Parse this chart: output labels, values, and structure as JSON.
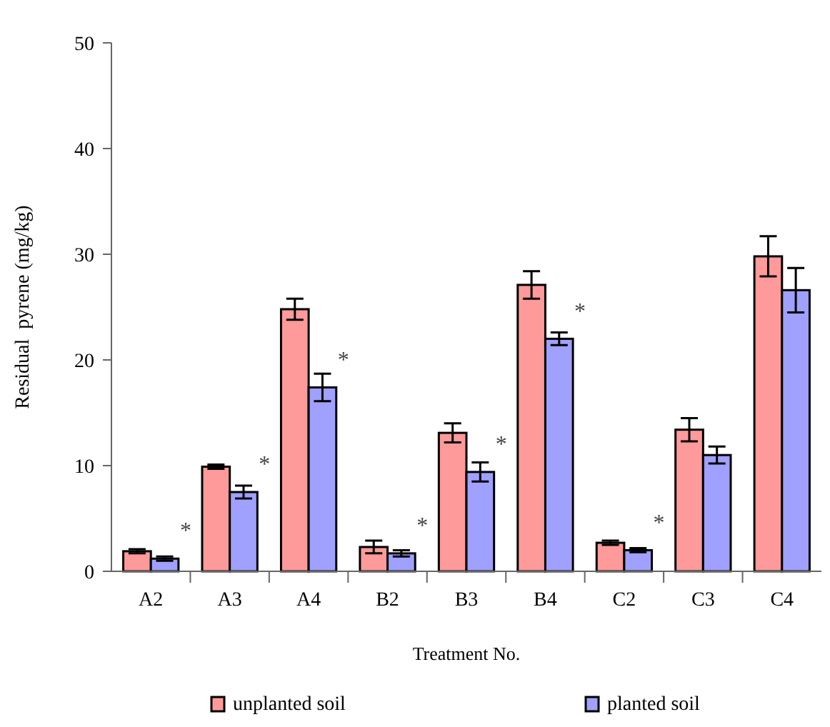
{
  "chart_data": {
    "type": "bar",
    "xlabel": "Treatment No.",
    "ylabel": "Residual  pyrene (mg/kg)",
    "categories": [
      "A2",
      "A3",
      "A4",
      "B2",
      "B3",
      "B4",
      "C2",
      "C3",
      "C4"
    ],
    "series": [
      {
        "name": "unplanted soil",
        "color": "#ff9a9a",
        "values": [
          1.9,
          9.9,
          24.8,
          2.3,
          13.1,
          27.1,
          2.7,
          13.4,
          29.8
        ],
        "errors": [
          0.2,
          0.2,
          1.0,
          0.6,
          0.9,
          1.3,
          0.2,
          1.1,
          1.9
        ]
      },
      {
        "name": "planted soil",
        "color": "#a0a0ff",
        "values": [
          1.2,
          7.5,
          17.4,
          1.7,
          9.4,
          22.0,
          2.0,
          11.0,
          26.6
        ],
        "errors": [
          0.2,
          0.6,
          1.3,
          0.3,
          0.9,
          0.6,
          0.2,
          0.8,
          2.1
        ]
      }
    ],
    "ylim": [
      0,
      50
    ],
    "yticks": [
      0,
      10,
      20,
      30,
      40,
      50
    ],
    "grid": false,
    "legend": "bottom",
    "annotations": [
      {
        "text": "*",
        "x": "A2",
        "y": 1.2
      },
      {
        "text": "*",
        "x": "A3",
        "y": 7.5
      },
      {
        "text": "*",
        "x": "A4",
        "y": 17.4
      },
      {
        "text": "*",
        "x": "B2",
        "y": 1.7
      },
      {
        "text": "*",
        "x": "B3",
        "y": 9.4
      },
      {
        "text": "*",
        "x": "B4",
        "y": 22.0
      },
      {
        "text": "*",
        "x": "C2",
        "y": 2.0
      }
    ]
  }
}
